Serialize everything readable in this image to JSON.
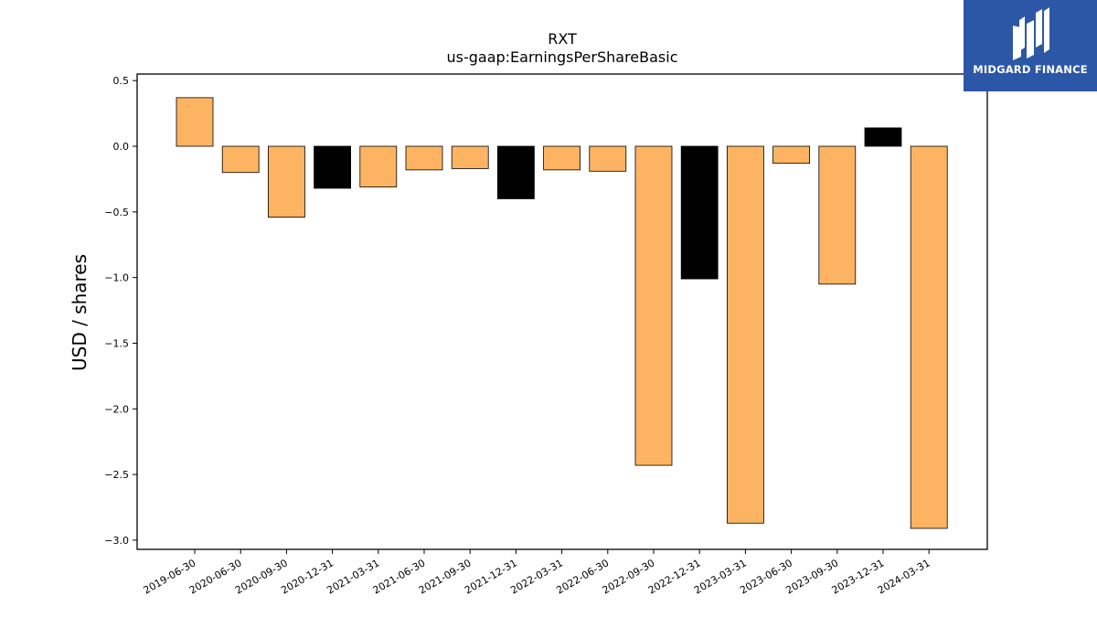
{
  "chart_data": {
    "type": "bar",
    "title": "RXT",
    "subtitle": "us-gaap:EarningsPerShareBasic",
    "xlabel": "",
    "ylabel": "USD / shares",
    "ylim": [
      -3.07,
      0.55
    ],
    "yticks": [
      0.5,
      0.0,
      -0.5,
      -1.0,
      -1.5,
      -2.0,
      -2.5,
      -3.0
    ],
    "ytick_labels": [
      "0.5",
      "0.0",
      "−0.5",
      "−1.0",
      "−1.5",
      "−2.0",
      "−2.5",
      "−3.0"
    ],
    "grid": false,
    "categories": [
      "2019-06-30",
      "2020-06-30",
      "2020-09-30",
      "2020-12-31",
      "2021-03-31",
      "2021-06-30",
      "2021-09-30",
      "2021-12-31",
      "2022-03-31",
      "2022-06-30",
      "2022-09-30",
      "2022-12-31",
      "2023-03-31",
      "2023-06-30",
      "2023-09-30",
      "2023-12-31",
      "2024-03-31"
    ],
    "values": [
      0.37,
      -0.2,
      -0.54,
      -0.32,
      -0.31,
      -0.18,
      -0.17,
      -0.4,
      -0.18,
      -0.19,
      -2.43,
      -1.01,
      -2.87,
      -0.13,
      -1.05,
      0.14,
      -2.91
    ],
    "bar_colors": [
      "#fdb462",
      "#fdb462",
      "#fdb462",
      "#000000",
      "#fdb462",
      "#fdb462",
      "#fdb462",
      "#000000",
      "#fdb462",
      "#fdb462",
      "#fdb462",
      "#000000",
      "#fdb462",
      "#fdb462",
      "#fdb462",
      "#000000",
      "#fdb462"
    ],
    "edge_color": "#000000"
  },
  "logo": {
    "text": "MIDGARD FINANCE",
    "background": "#2c57a6",
    "icon": "midgard-monogram-icon"
  }
}
